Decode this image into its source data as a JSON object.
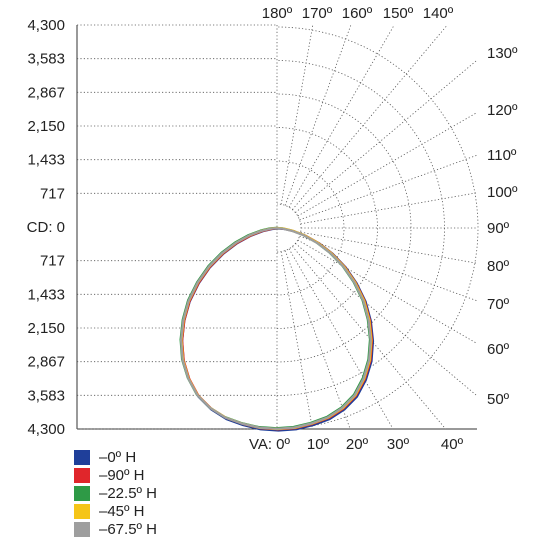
{
  "chart_data": {
    "type": "polar",
    "candela_ticks": [
      "4,300",
      "3,583",
      "2,867",
      "2,150",
      "1,433",
      "717",
      "0",
      "717",
      "1,433",
      "2,150",
      "2,867",
      "3,583",
      "4,300"
    ],
    "cd_prefix": "CD:",
    "va_prefix": "VA:",
    "va_ticks": [
      "0º",
      "10º",
      "20º",
      "30º",
      "40º"
    ],
    "top_angle_labels": [
      "180º",
      "170º",
      "160º",
      "150º",
      "140º"
    ],
    "side_angle_labels": [
      "130º",
      "120º",
      "110º",
      "100º",
      "90º",
      "80º",
      "70º",
      "60º",
      "50º"
    ],
    "cd_max": 4300,
    "series": [
      {
        "name": "–0º H",
        "color": "#1f3f9a"
      },
      {
        "name": "–90º H",
        "color": "#e0262b"
      },
      {
        "name": "–22.5º H",
        "color": "#2e9a46"
      },
      {
        "name": "–45º H",
        "color": "#f5c518"
      },
      {
        "name": "–67.5º H",
        "color": "#9e9e9e"
      }
    ],
    "distribution": {
      "angles": [
        0,
        5,
        10,
        15,
        20,
        25,
        30,
        35,
        40,
        45,
        50,
        55,
        60,
        65,
        70,
        75,
        80,
        85,
        90
      ],
      "candela": [
        4300,
        4290,
        4250,
        4200,
        4100,
        3950,
        3720,
        3450,
        3130,
        2780,
        2420,
        2030,
        1650,
        1270,
        920,
        600,
        330,
        130,
        0
      ]
    }
  }
}
